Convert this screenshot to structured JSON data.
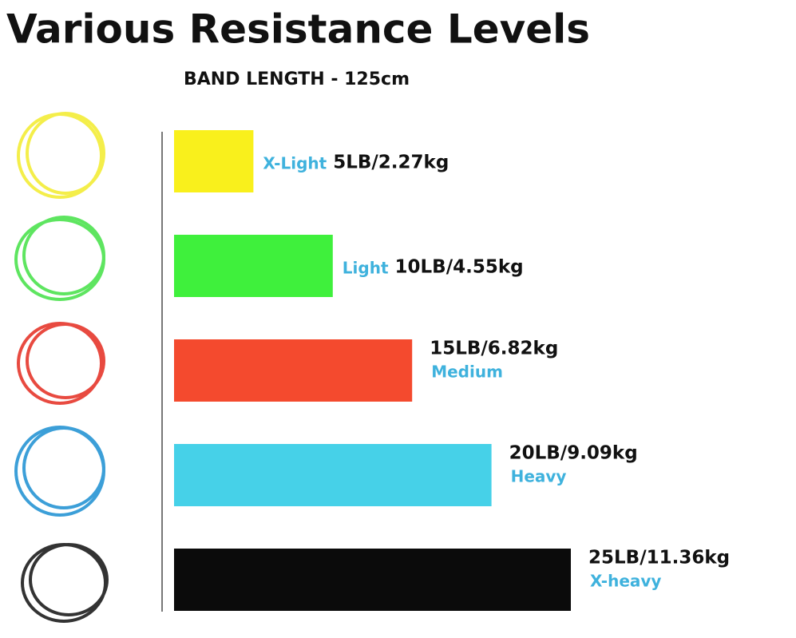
{
  "chart_data": {
    "type": "bar",
    "orientation": "horizontal",
    "title": "Various Resistance Levels",
    "subtitle": "BAND LENGTH - 125cm",
    "categories": [
      "X-Light",
      "Light",
      "Medium",
      "Heavy",
      "X-heavy"
    ],
    "values": [
      5,
      10,
      15,
      20,
      25
    ],
    "value_labels": [
      "5LB/2.27kg",
      "10LB/4.55kg",
      "15LB/6.82kg",
      "20LB/9.09kg",
      "25LB/11.36kg"
    ],
    "colors": [
      "#f9f01c",
      "#3ff03c",
      "#f44a2e",
      "#46d1e8",
      "#0b0b0b"
    ]
  }
}
